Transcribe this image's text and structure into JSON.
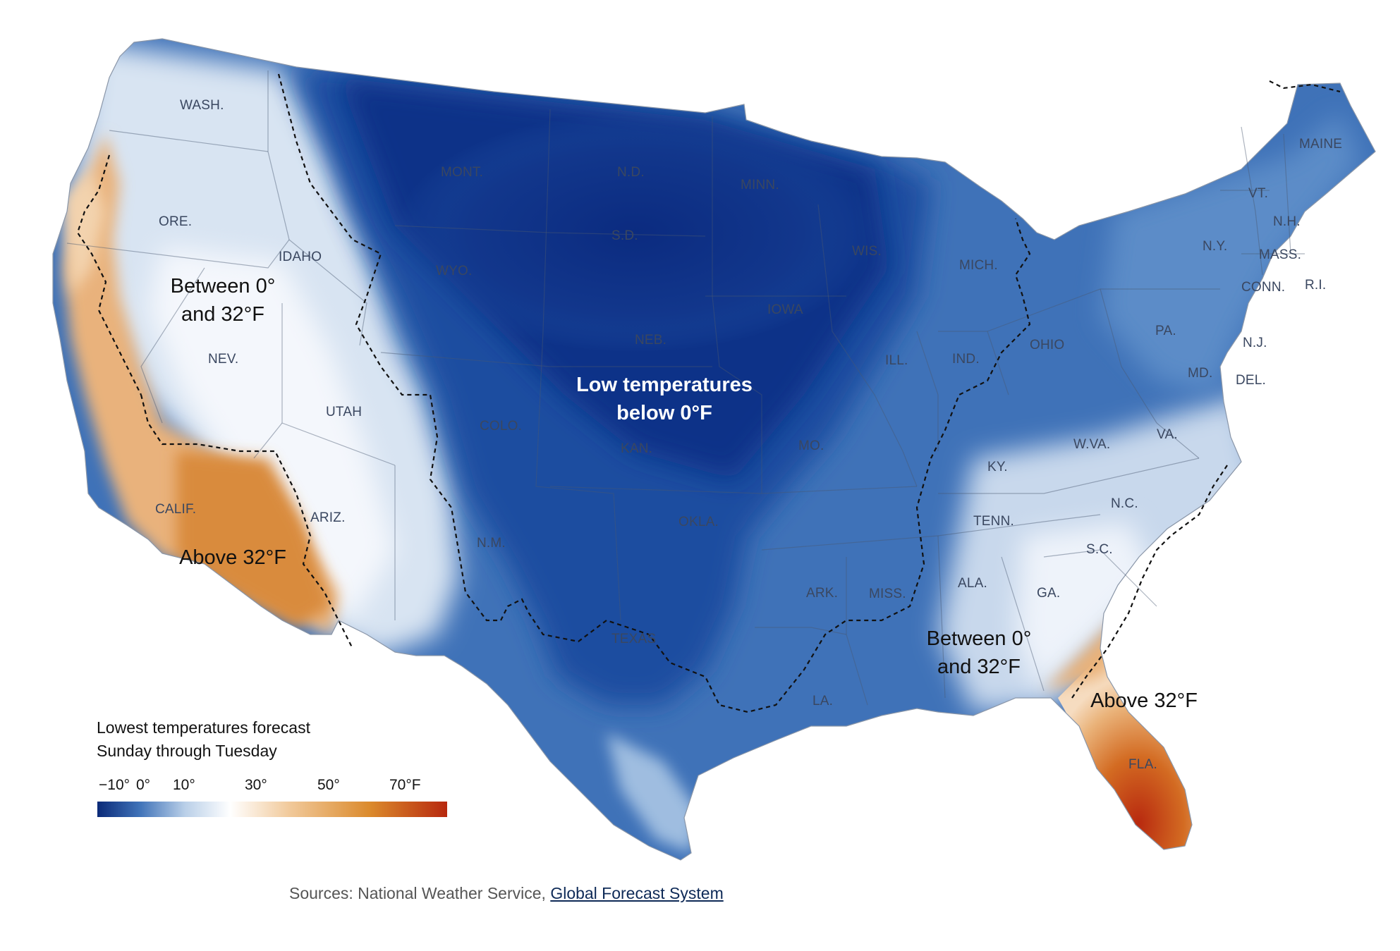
{
  "legend": {
    "title_line1": "Lowest temperatures forecast",
    "title_line2": "Sunday through Tuesday",
    "ticks": [
      "−10°",
      "0°",
      "10°",
      "30°",
      "50°",
      "70°F"
    ],
    "colors": [
      "#0b2a78",
      "#3f72b8",
      "#b9cfe8",
      "#ffffff",
      "#f1c99a",
      "#db8a2c",
      "#b7280e"
    ]
  },
  "annotations": {
    "west_between_line1": "Between 0°",
    "west_between_line2": "and 32°F",
    "west_above": "Above 32°F",
    "center_line1": "Low temperatures",
    "center_line2": "below 0°F",
    "southeast_between_line1": "Between 0°",
    "southeast_between_line2": "and 32°F",
    "southeast_above": "Above 32°F"
  },
  "states": {
    "wash": "WASH.",
    "ore": "ORE.",
    "idaho": "IDAHO",
    "mont": "MONT.",
    "nd": "N.D.",
    "minn": "MINN.",
    "sd": "S.D.",
    "wyo": "WYO.",
    "wis": "WIS.",
    "mich": "MICH.",
    "maine": "MAINE",
    "vt": "VT.",
    "nh": "N.H.",
    "ny": "N.Y.",
    "mass": "MASS.",
    "conn": "CONN.",
    "ri": "R.I.",
    "nev": "NEV.",
    "utah": "UTAH",
    "iowa": "IOWA",
    "neb": "NEB.",
    "ill": "ILL.",
    "ind": "IND.",
    "ohio": "OHIO",
    "pa": "PA.",
    "nj": "N.J.",
    "md": "MD.",
    "del": "DEL.",
    "colo": "COLO.",
    "kan": "KAN.",
    "mo": "MO.",
    "wva": "W.VA.",
    "va": "VA.",
    "ky": "KY.",
    "calif": "CALIF.",
    "ariz": "ARIZ.",
    "nm": "N.M.",
    "okla": "OKLA.",
    "tenn": "TENN.",
    "nc": "N.C.",
    "sc": "S.C.",
    "ark": "ARK.",
    "miss": "MISS.",
    "ala": "ALA.",
    "ga": "GA.",
    "texas": "TEXAS",
    "la": "LA.",
    "fla": "FLA."
  },
  "sources": {
    "prefix": "Sources: National Weather Service, ",
    "link": "Global Forecast System"
  }
}
